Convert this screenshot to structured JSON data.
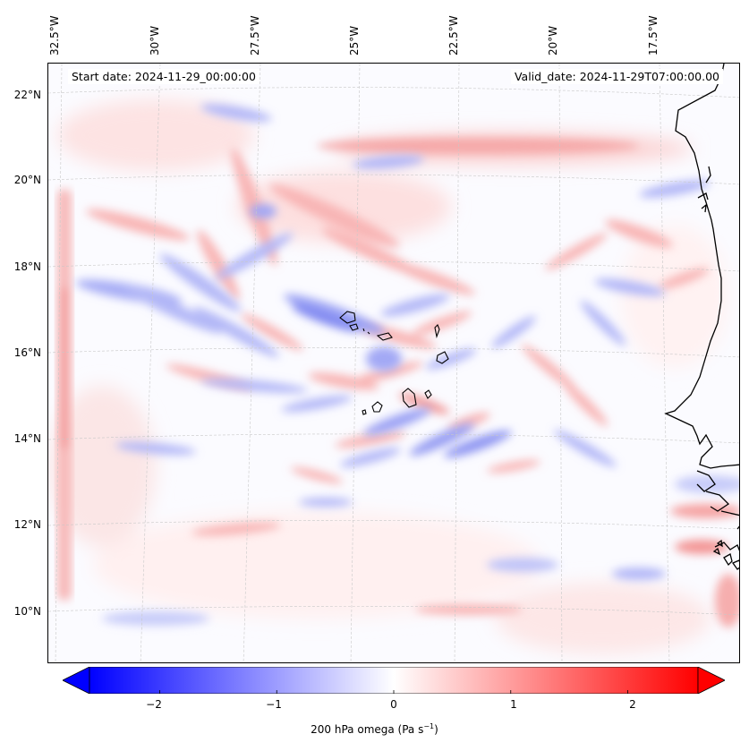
{
  "map": {
    "start_date_label": "Start date: 2024-11-29_00:00:00",
    "valid_date_label": "Valid_date: 2024-11-29T07:00:00.00",
    "lon_labels": [
      "32.5°W",
      "30°W",
      "27.5°W",
      "25°W",
      "22.5°W",
      "20°W",
      "17.5°W"
    ],
    "lat_labels": [
      "22°N",
      "20°N",
      "18°N",
      "16°N",
      "14°N",
      "12°N",
      "10°N"
    ],
    "lon_range": [
      -33.0,
      -15.5
    ],
    "lat_range": [
      8.8,
      22.8
    ],
    "gridlines": "dashed grey",
    "coastline_color": "#000000",
    "islands": [
      "Santo Antão",
      "São Vicente",
      "São Nicolau",
      "Sal",
      "Boa Vista",
      "Maio",
      "Santiago",
      "Fogo",
      "Brava"
    ]
  },
  "colorbar": {
    "ticks": [
      "−2",
      "−1",
      "0",
      "1",
      "2"
    ],
    "tick_values": [
      -2,
      -1,
      0,
      1,
      2
    ],
    "vmin": -2.6,
    "vmax": 2.6,
    "extend": "both",
    "colormap": "bwr",
    "low_color": "#0000ff",
    "mid_color": "#ffffff",
    "high_color": "#ff0000",
    "label_prefix": "200 hPa omega (Pa s",
    "label_exponent": "−1",
    "label_suffix": ")"
  }
}
